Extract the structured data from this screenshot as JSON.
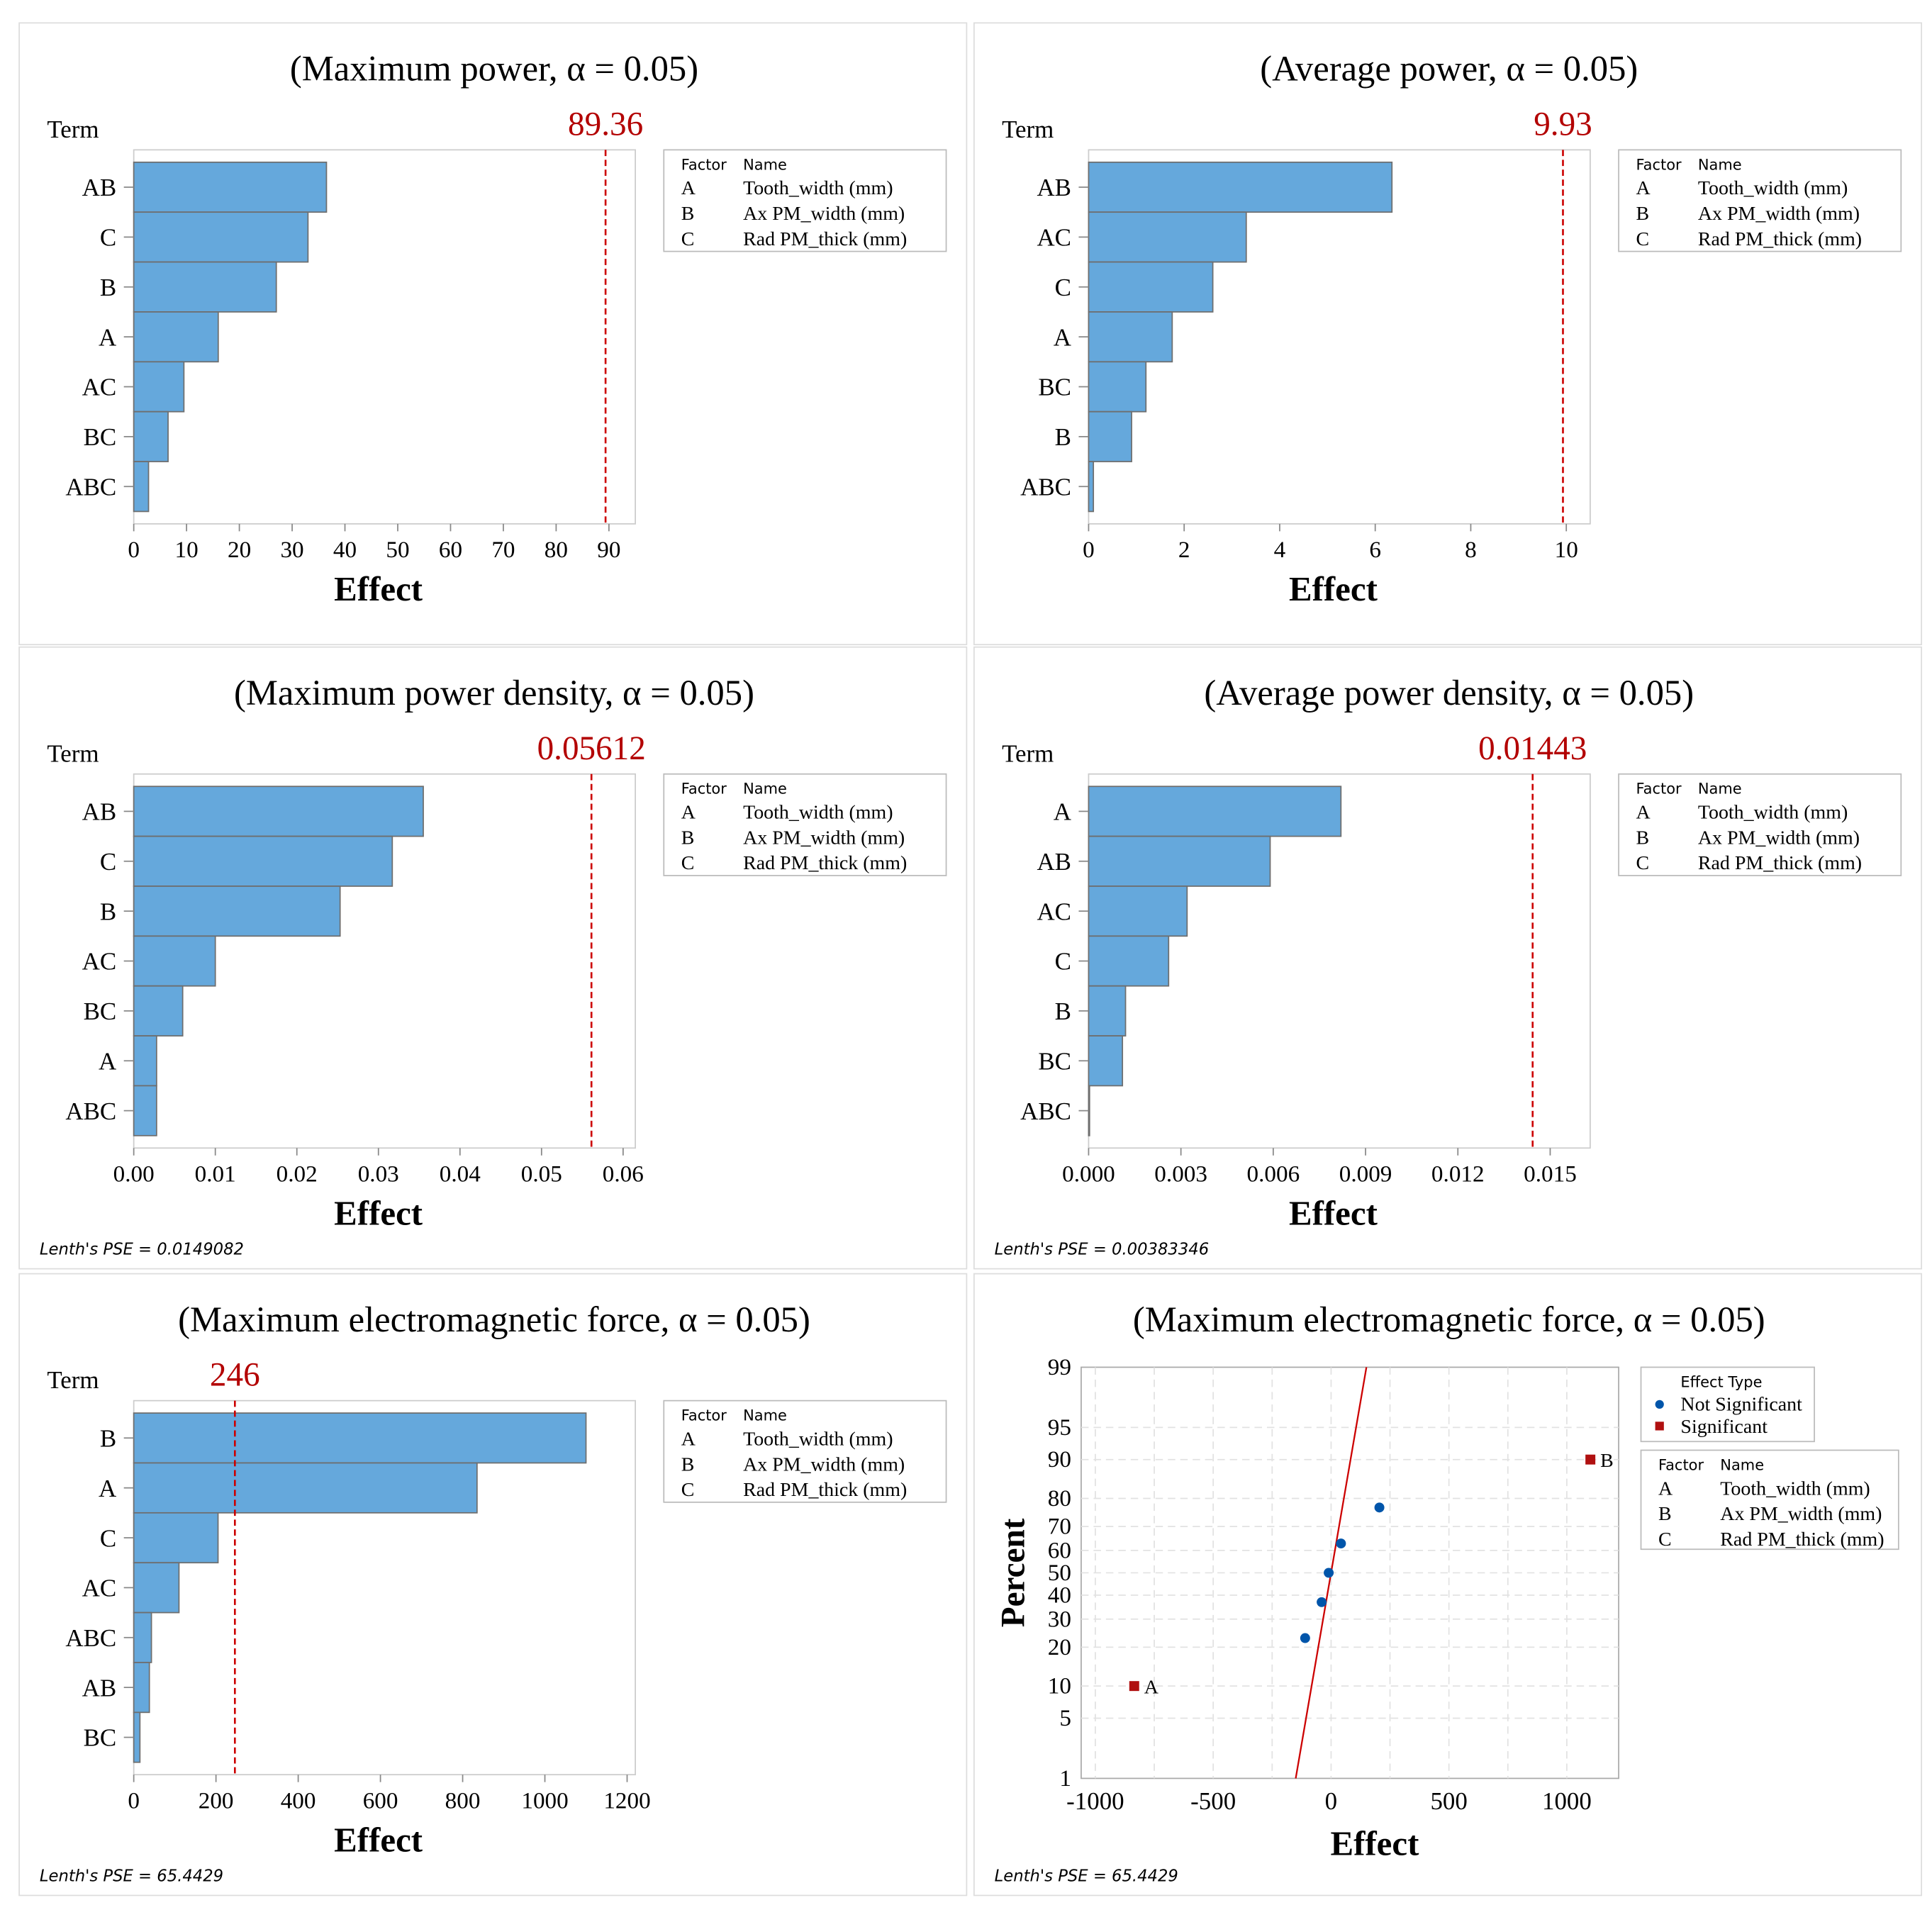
{
  "factor_legend": {
    "header_factor": "Factor",
    "header_name": "Name",
    "rows": [
      {
        "factor": "A",
        "name": "Tooth_width (mm)"
      },
      {
        "factor": "B",
        "name": "Ax PM_width (mm)"
      },
      {
        "factor": "C",
        "name": "Rad PM_thick (mm)"
      }
    ]
  },
  "colors": {
    "bar": "#65a8dc",
    "bar_edge": "#6e6e6e",
    "ref": "#cc0000",
    "ref_label": "#b30000",
    "not_significant": "#0055aa",
    "significant": "#b01010"
  },
  "chart_data": [
    {
      "type": "bar",
      "orientation": "horizontal",
      "title": "(Maximum power, α = 0.05)",
      "ylabel": "Term",
      "xlabel": "Effect",
      "categories": [
        "AB",
        "C",
        "B",
        "A",
        "AC",
        "BC",
        "ABC"
      ],
      "values": [
        36.5,
        33,
        27,
        16,
        9.5,
        6.5,
        2.8
      ],
      "reference": 89.36,
      "reference_label": "89.36",
      "xlim": [
        0,
        95
      ],
      "xticks": [
        0,
        10,
        20,
        30,
        40,
        50,
        60,
        70,
        80,
        90
      ],
      "xtick_labels": [
        "0",
        "10",
        "20",
        "30",
        "40",
        "50",
        "60",
        "70",
        "80",
        "90"
      ],
      "footnote": ""
    },
    {
      "type": "bar",
      "orientation": "horizontal",
      "title": "(Average power, α = 0.05)",
      "ylabel": "Term",
      "xlabel": "Effect",
      "categories": [
        "AB",
        "AC",
        "C",
        "A",
        "BC",
        "B",
        "ABC"
      ],
      "values": [
        6.35,
        3.3,
        2.6,
        1.75,
        1.2,
        0.9,
        0.1
      ],
      "reference": 9.93,
      "reference_label": "9.93",
      "xlim": [
        0,
        10.5
      ],
      "xticks": [
        0,
        2,
        4,
        6,
        8,
        10
      ],
      "xtick_labels": [
        "0",
        "2",
        "4",
        "6",
        "8",
        "10"
      ],
      "footnote": ""
    },
    {
      "type": "bar",
      "orientation": "horizontal",
      "title": "(Maximum power density, α = 0.05)",
      "ylabel": "Term",
      "xlabel": "Effect",
      "categories": [
        "AB",
        "C",
        "B",
        "AC",
        "BC",
        "A",
        "ABC"
      ],
      "values": [
        0.0355,
        0.0317,
        0.0253,
        0.01,
        0.006,
        0.0028,
        0.0028
      ],
      "reference": 0.05612,
      "reference_label": "0.05612",
      "xlim": [
        0,
        0.0615
      ],
      "xticks": [
        0,
        0.01,
        0.02,
        0.03,
        0.04,
        0.05,
        0.06
      ],
      "xtick_labels": [
        "0.00",
        "0.01",
        "0.02",
        "0.03",
        "0.04",
        "0.05",
        "0.06"
      ],
      "footnote": "Lenth's PSE = 0.0149082"
    },
    {
      "type": "bar",
      "orientation": "horizontal",
      "title": "(Average power density, α = 0.05)",
      "ylabel": "Term",
      "xlabel": "Effect",
      "categories": [
        "A",
        "AB",
        "AC",
        "C",
        "B",
        "BC",
        "ABC"
      ],
      "values": [
        0.0082,
        0.0059,
        0.0032,
        0.0026,
        0.0012,
        0.0011,
        3e-05
      ],
      "reference": 0.01443,
      "reference_label": "0.01443",
      "xlim": [
        0,
        0.0163
      ],
      "xticks": [
        0,
        0.003,
        0.006,
        0.009,
        0.012,
        0.015
      ],
      "xtick_labels": [
        "0.000",
        "0.003",
        "0.006",
        "0.009",
        "0.012",
        "0.015"
      ],
      "footnote": "Lenth's PSE = 0.00383346"
    },
    {
      "type": "bar",
      "orientation": "horizontal",
      "title": "(Maximum electromagnetic force, α = 0.05)",
      "ylabel": "Term",
      "xlabel": "Effect",
      "categories": [
        "B",
        "A",
        "C",
        "AC",
        "ABC",
        "AB",
        "BC"
      ],
      "values": [
        1100,
        835,
        205,
        110,
        43,
        38,
        15
      ],
      "reference": 246,
      "reference_label": "246",
      "xlim": [
        0,
        1220
      ],
      "xticks": [
        0,
        200,
        400,
        600,
        800,
        1000,
        1200
      ],
      "xtick_labels": [
        "0",
        "200",
        "400",
        "600",
        "800",
        "1000",
        "1200"
      ],
      "footnote": "Lenth's PSE = 65.4429"
    },
    {
      "type": "scatter",
      "title": "(Maximum electromagnetic force, α = 0.05)",
      "xlabel": "Effect",
      "ylabel": "Percent",
      "xlim": [
        -1060,
        1220
      ],
      "xticks": [
        -1000,
        -500,
        0,
        500,
        1000
      ],
      "xtick_labels": [
        "-1000",
        "-500",
        "0",
        "500",
        "1000"
      ],
      "yticks": [
        1,
        5,
        10,
        20,
        30,
        40,
        50,
        60,
        70,
        80,
        90,
        95,
        99
      ],
      "ytick_labels": [
        "1",
        "5",
        "10",
        "20",
        "30",
        "40",
        "50",
        "60",
        "70",
        "80",
        "90",
        "95",
        "99"
      ],
      "points": [
        {
          "x": -835,
          "y": 10,
          "type": "Significant",
          "label": "A"
        },
        {
          "x": -110,
          "y": 23,
          "type": "Not Significant",
          "label": ""
        },
        {
          "x": -40,
          "y": 37,
          "type": "Not Significant",
          "label": ""
        },
        {
          "x": -10,
          "y": 50,
          "type": "Not Significant",
          "label": ""
        },
        {
          "x": 42,
          "y": 63,
          "type": "Not Significant",
          "label": ""
        },
        {
          "x": 205,
          "y": 77,
          "type": "Not Significant",
          "label": ""
        },
        {
          "x": 1100,
          "y": 90,
          "type": "Significant",
          "label": "B"
        }
      ],
      "fit_line": [
        {
          "x": -150,
          "y": 1
        },
        {
          "x": 150,
          "y": 99
        }
      ],
      "legend_title": "Effect Type",
      "legend_items": [
        "Not Significant",
        "Significant"
      ],
      "footnote": "Lenth's PSE = 65.4429"
    }
  ]
}
